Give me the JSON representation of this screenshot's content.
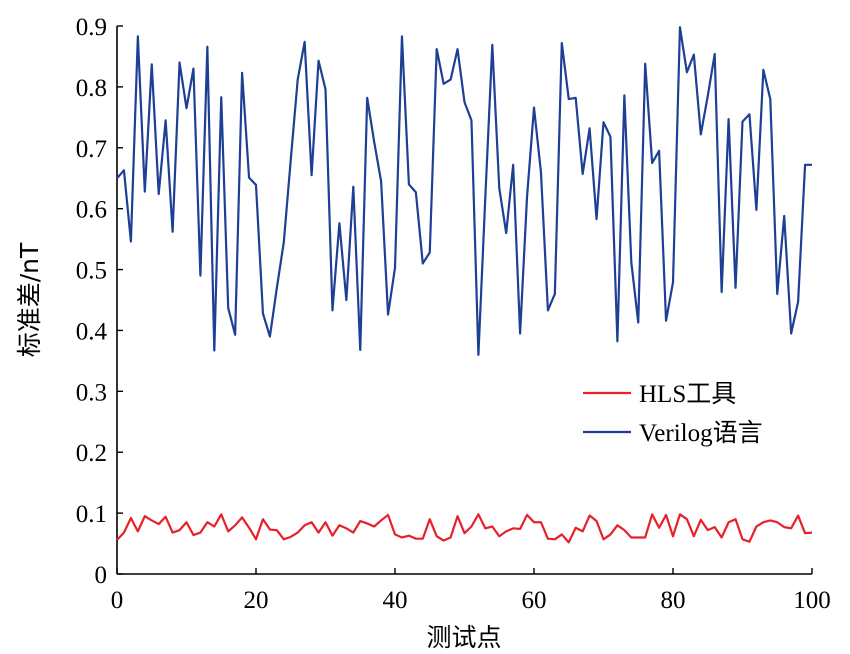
{
  "chart_data": {
    "type": "line",
    "xlabel": "测试点",
    "ylabel": "标准差/nT",
    "xlim": [
      0,
      100
    ],
    "ylim": [
      0,
      0.9
    ],
    "xticks": [
      0,
      20,
      40,
      60,
      80,
      100
    ],
    "yticks": [
      0,
      0.1,
      0.2,
      0.3,
      0.4,
      0.5,
      0.6,
      0.7,
      0.8,
      0.9
    ],
    "ytick_labels": [
      "0",
      "0.1",
      "0.2",
      "0.3",
      "0.4",
      "0.5",
      "0.6",
      "0.7",
      "0.8",
      "0.9"
    ],
    "grid": false,
    "legend_position": "right-middle",
    "x": [
      0,
      1,
      2,
      3,
      4,
      5,
      6,
      7,
      8,
      9,
      10,
      11,
      12,
      13,
      14,
      15,
      16,
      17,
      18,
      19,
      20,
      21,
      22,
      23,
      24,
      25,
      26,
      27,
      28,
      29,
      30,
      31,
      32,
      33,
      34,
      35,
      36,
      37,
      38,
      39,
      40,
      41,
      42,
      43,
      44,
      45,
      46,
      47,
      48,
      49,
      50,
      51,
      52,
      53,
      54,
      55,
      56,
      57,
      58,
      59,
      60,
      61,
      62,
      63,
      64,
      65,
      66,
      67,
      68,
      69,
      70,
      71,
      72,
      73,
      74,
      75,
      76,
      77,
      78,
      79,
      80,
      81,
      82,
      83,
      84,
      85,
      86,
      87,
      88,
      89,
      90,
      91,
      92,
      93,
      94,
      95,
      96,
      97,
      98,
      99,
      100
    ],
    "series": [
      {
        "name": "HLS工具",
        "color": "#e8202a",
        "values": [
          0.056,
          0.068,
          0.092,
          0.07,
          0.095,
          0.088,
          0.082,
          0.094,
          0.068,
          0.072,
          0.085,
          0.064,
          0.068,
          0.085,
          0.078,
          0.098,
          0.07,
          0.08,
          0.093,
          0.076,
          0.057,
          0.09,
          0.073,
          0.072,
          0.057,
          0.061,
          0.068,
          0.08,
          0.085,
          0.068,
          0.085,
          0.063,
          0.08,
          0.075,
          0.068,
          0.087,
          0.083,
          0.078,
          0.088,
          0.097,
          0.065,
          0.06,
          0.063,
          0.058,
          0.058,
          0.09,
          0.062,
          0.055,
          0.06,
          0.095,
          0.067,
          0.078,
          0.098,
          0.075,
          0.078,
          0.062,
          0.07,
          0.075,
          0.074,
          0.097,
          0.085,
          0.085,
          0.058,
          0.057,
          0.065,
          0.052,
          0.076,
          0.07,
          0.096,
          0.087,
          0.057,
          0.065,
          0.08,
          0.072,
          0.06,
          0.06,
          0.06,
          0.098,
          0.076,
          0.097,
          0.062,
          0.098,
          0.09,
          0.062,
          0.089,
          0.072,
          0.077,
          0.06,
          0.085,
          0.09,
          0.057,
          0.053,
          0.078,
          0.085,
          0.088,
          0.085,
          0.077,
          0.075,
          0.096,
          0.067,
          0.068
        ]
      },
      {
        "name": "Verilog语言",
        "color": "#1d3f94",
        "values": [
          0.65,
          0.663,
          0.546,
          0.883,
          0.628,
          0.837,
          0.624,
          0.745,
          0.562,
          0.84,
          0.765,
          0.83,
          0.49,
          0.866,
          0.367,
          0.783,
          0.437,
          0.393,
          0.823,
          0.651,
          0.639,
          0.428,
          0.39,
          0.47,
          0.545,
          0.68,
          0.812,
          0.874,
          0.655,
          0.843,
          0.796,
          0.433,
          0.576,
          0.45,
          0.636,
          0.368,
          0.782,
          0.71,
          0.645,
          0.426,
          0.503,
          0.883,
          0.64,
          0.627,
          0.51,
          0.528,
          0.862,
          0.805,
          0.812,
          0.862,
          0.775,
          0.745,
          0.36,
          0.62,
          0.869,
          0.634,
          0.56,
          0.672,
          0.395,
          0.62,
          0.766,
          0.66,
          0.433,
          0.46,
          0.872,
          0.78,
          0.782,
          0.657,
          0.732,
          0.583,
          0.742,
          0.718,
          0.382,
          0.786,
          0.512,
          0.413,
          0.838,
          0.675,
          0.695,
          0.416,
          0.479,
          0.898,
          0.824,
          0.853,
          0.722,
          0.785,
          0.854,
          0.463,
          0.747,
          0.47,
          0.743,
          0.755,
          0.598,
          0.828,
          0.78,
          0.46,
          0.588,
          0.395,
          0.447,
          0.672,
          0.672
        ]
      }
    ]
  }
}
